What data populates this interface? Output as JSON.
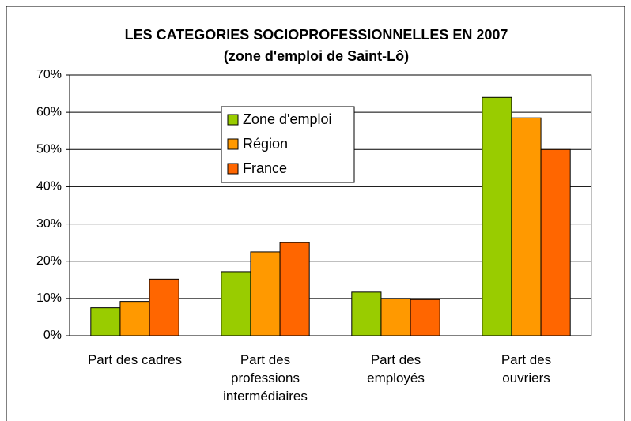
{
  "chart_data": {
    "type": "bar",
    "title": "LES CATEGORIES SOCIOPROFESSIONNELLES EN 2007",
    "subtitle": "(zone d'emploi de Saint-Lô)",
    "categories": [
      "Part des cadres",
      "Part des\nprofessions\nintermédiaires",
      "Part des\nemployés",
      "Part des\nouvriers"
    ],
    "series": [
      {
        "name": "Zone d'emploi",
        "color": "#99cc00",
        "values": [
          7.5,
          17.2,
          11.7,
          64
        ]
      },
      {
        "name": "Région",
        "color": "#ff9900",
        "values": [
          9.2,
          22.5,
          10,
          58.5
        ]
      },
      {
        "name": "France",
        "color": "#ff6600",
        "values": [
          15.2,
          25,
          9.7,
          50
        ]
      }
    ],
    "ylim": [
      0,
      70
    ],
    "yticks": [
      {
        "value": 0,
        "label": "0%"
      },
      {
        "value": 10,
        "label": "10%"
      },
      {
        "value": 20,
        "label": "20%"
      },
      {
        "value": 30,
        "label": "30%"
      },
      {
        "value": 40,
        "label": "40%"
      },
      {
        "value": 50,
        "label": "50%"
      },
      {
        "value": 60,
        "label": "60%"
      },
      {
        "value": 70,
        "label": "70%"
      }
    ],
    "grid": true,
    "legend": "inside-top-center"
  }
}
